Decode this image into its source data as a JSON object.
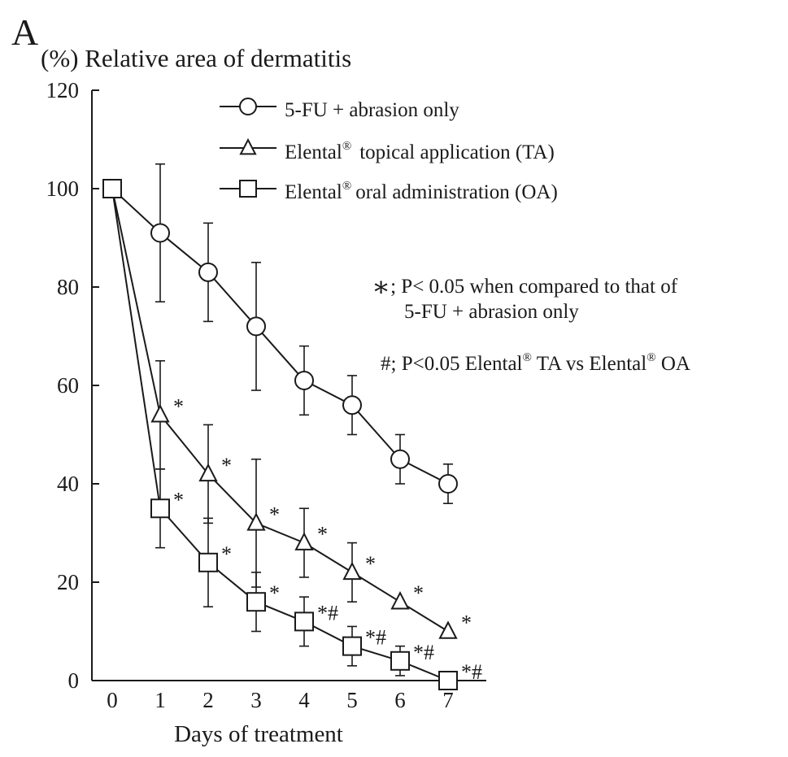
{
  "panel_label": "A",
  "chart_data": {
    "type": "line",
    "title": "",
    "ylabel": "(%) Relative area of dermatitis",
    "xlabel": "Days of treatment",
    "x": [
      0,
      1,
      2,
      3,
      4,
      5,
      6,
      7
    ],
    "xticks": [
      "0",
      "1",
      "2",
      "3",
      "4",
      "5",
      "6",
      "7"
    ],
    "yticks": [
      "0",
      "20",
      "40",
      "60",
      "80",
      "100",
      "120"
    ],
    "xlim": [
      -0.4,
      7.8
    ],
    "ylim": [
      0,
      120
    ],
    "grid": false,
    "legend_position": "top-right",
    "series": [
      {
        "name": "5-FU + abrasion only",
        "marker": "circle",
        "values": [
          100,
          91,
          83,
          72,
          61,
          56,
          45,
          40
        ],
        "error_plus": [
          0,
          14,
          10,
          13,
          7,
          6,
          5,
          4
        ],
        "error_minus": [
          0,
          14,
          10,
          13,
          7,
          6,
          5,
          4
        ]
      },
      {
        "name": "Elental® topical application (TA)",
        "legend_main": "Elental",
        "legend_sup": "®",
        "legend_rest": "topical application (TA)",
        "marker": "triangle",
        "values": [
          100,
          54,
          42,
          32,
          28,
          22,
          16,
          10
        ],
        "error_plus": [
          0,
          11,
          10,
          13,
          7,
          6,
          0,
          0
        ],
        "error_minus": [
          0,
          11,
          10,
          13,
          7,
          6,
          0,
          0
        ],
        "annotations": [
          "",
          "*",
          "*",
          "*",
          "*",
          "*",
          "*",
          "*"
        ]
      },
      {
        "name": "Elental® oral administration (OA)",
        "legend_main": "Elental",
        "legend_sup": "®",
        "legend_rest": "oral administration (OA)",
        "marker": "square",
        "values": [
          100,
          35,
          24,
          16,
          12,
          7,
          4,
          0
        ],
        "error_plus": [
          0,
          8,
          9,
          6,
          5,
          4,
          3,
          0
        ],
        "error_minus": [
          0,
          8,
          9,
          6,
          5,
          4,
          3,
          0
        ],
        "annotations": [
          "",
          "*",
          "*",
          "*",
          "*#",
          "*#",
          "*#",
          "*#"
        ]
      }
    ],
    "notes": {
      "line1_symbol": "∗",
      "line1_text": "; P< 0.05 when compared to that of",
      "line2_text": "5-FU + abrasion only",
      "line3_a": "#;  P<0.05   Elental",
      "line3_sup1": "®",
      "line3_b": " TA  vs  Elental",
      "line3_sup2": "®",
      "line3_c": " OA"
    }
  }
}
